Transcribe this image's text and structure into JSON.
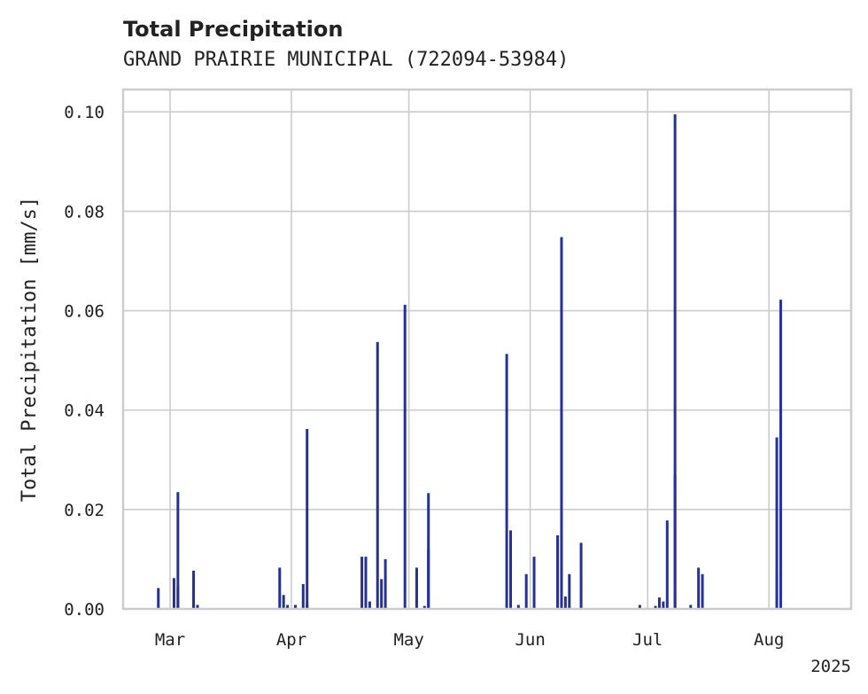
{
  "chart_data": {
    "type": "bar",
    "title": "Total Precipitation",
    "subtitle": "GRAND PRAIRIE MUNICIPAL (722094-53984)",
    "xlabel": "",
    "ylabel": "Total Precipitation [mm/s]",
    "xlim": [
      "2025-02-17",
      "2025-08-22"
    ],
    "ylim": [
      0,
      0.1045
    ],
    "y_ticks": [
      0.0,
      0.02,
      0.04,
      0.06,
      0.08,
      0.1
    ],
    "y_tick_labels": [
      "0.00",
      "0.02",
      "0.04",
      "0.06",
      "0.08",
      "0.10"
    ],
    "x_ticks": [
      "2025-03-01",
      "2025-04-01",
      "2025-05-01",
      "2025-06-01",
      "2025-07-01",
      "2025-08-01"
    ],
    "x_tick_labels": [
      "Mar",
      "Apr",
      "May",
      "Jun",
      "Jul",
      "Aug"
    ],
    "x_offset_label": "2025",
    "grid": true,
    "color": "#24319a",
    "x": [
      "2025-02-26",
      "2025-03-02",
      "2025-03-03",
      "2025-03-03",
      "2025-03-07",
      "2025-03-07",
      "2025-03-08",
      "2025-03-29",
      "2025-03-30",
      "2025-03-31",
      "2025-04-02",
      "2025-04-04",
      "2025-04-05",
      "2025-04-05",
      "2025-04-19",
      "2025-04-20",
      "2025-04-21",
      "2025-04-23",
      "2025-04-24",
      "2025-04-25",
      "2025-04-30",
      "2025-05-03",
      "2025-05-05",
      "2025-05-06",
      "2025-05-06",
      "2025-05-26",
      "2025-05-27",
      "2025-05-29",
      "2025-05-31",
      "2025-06-02",
      "2025-06-08",
      "2025-06-09",
      "2025-06-10",
      "2025-06-11",
      "2025-06-14",
      "2025-06-29",
      "2025-07-03",
      "2025-07-04",
      "2025-07-05",
      "2025-07-06",
      "2025-07-08",
      "2025-07-08",
      "2025-07-12",
      "2025-07-14",
      "2025-07-15",
      "2025-08-03",
      "2025-08-03",
      "2025-08-04"
    ],
    "values": [
      0.0042,
      0.0062,
      0.0235,
      0.0045,
      0.0077,
      0.0008,
      0.0008,
      0.0083,
      0.0028,
      0.0008,
      0.0008,
      0.005,
      0.0362,
      0.001,
      0.0105,
      0.0105,
      0.0015,
      0.0537,
      0.006,
      0.01,
      0.0612,
      0.0083,
      0.0006,
      0.012,
      0.0233,
      0.0513,
      0.0158,
      0.0008,
      0.007,
      0.0105,
      0.0148,
      0.0748,
      0.0025,
      0.007,
      0.0133,
      0.0008,
      0.0006,
      0.0023,
      0.0015,
      0.0178,
      0.0995,
      0.027,
      0.0008,
      0.0083,
      0.007,
      0.0345,
      0.0075,
      0.0622
    ]
  }
}
